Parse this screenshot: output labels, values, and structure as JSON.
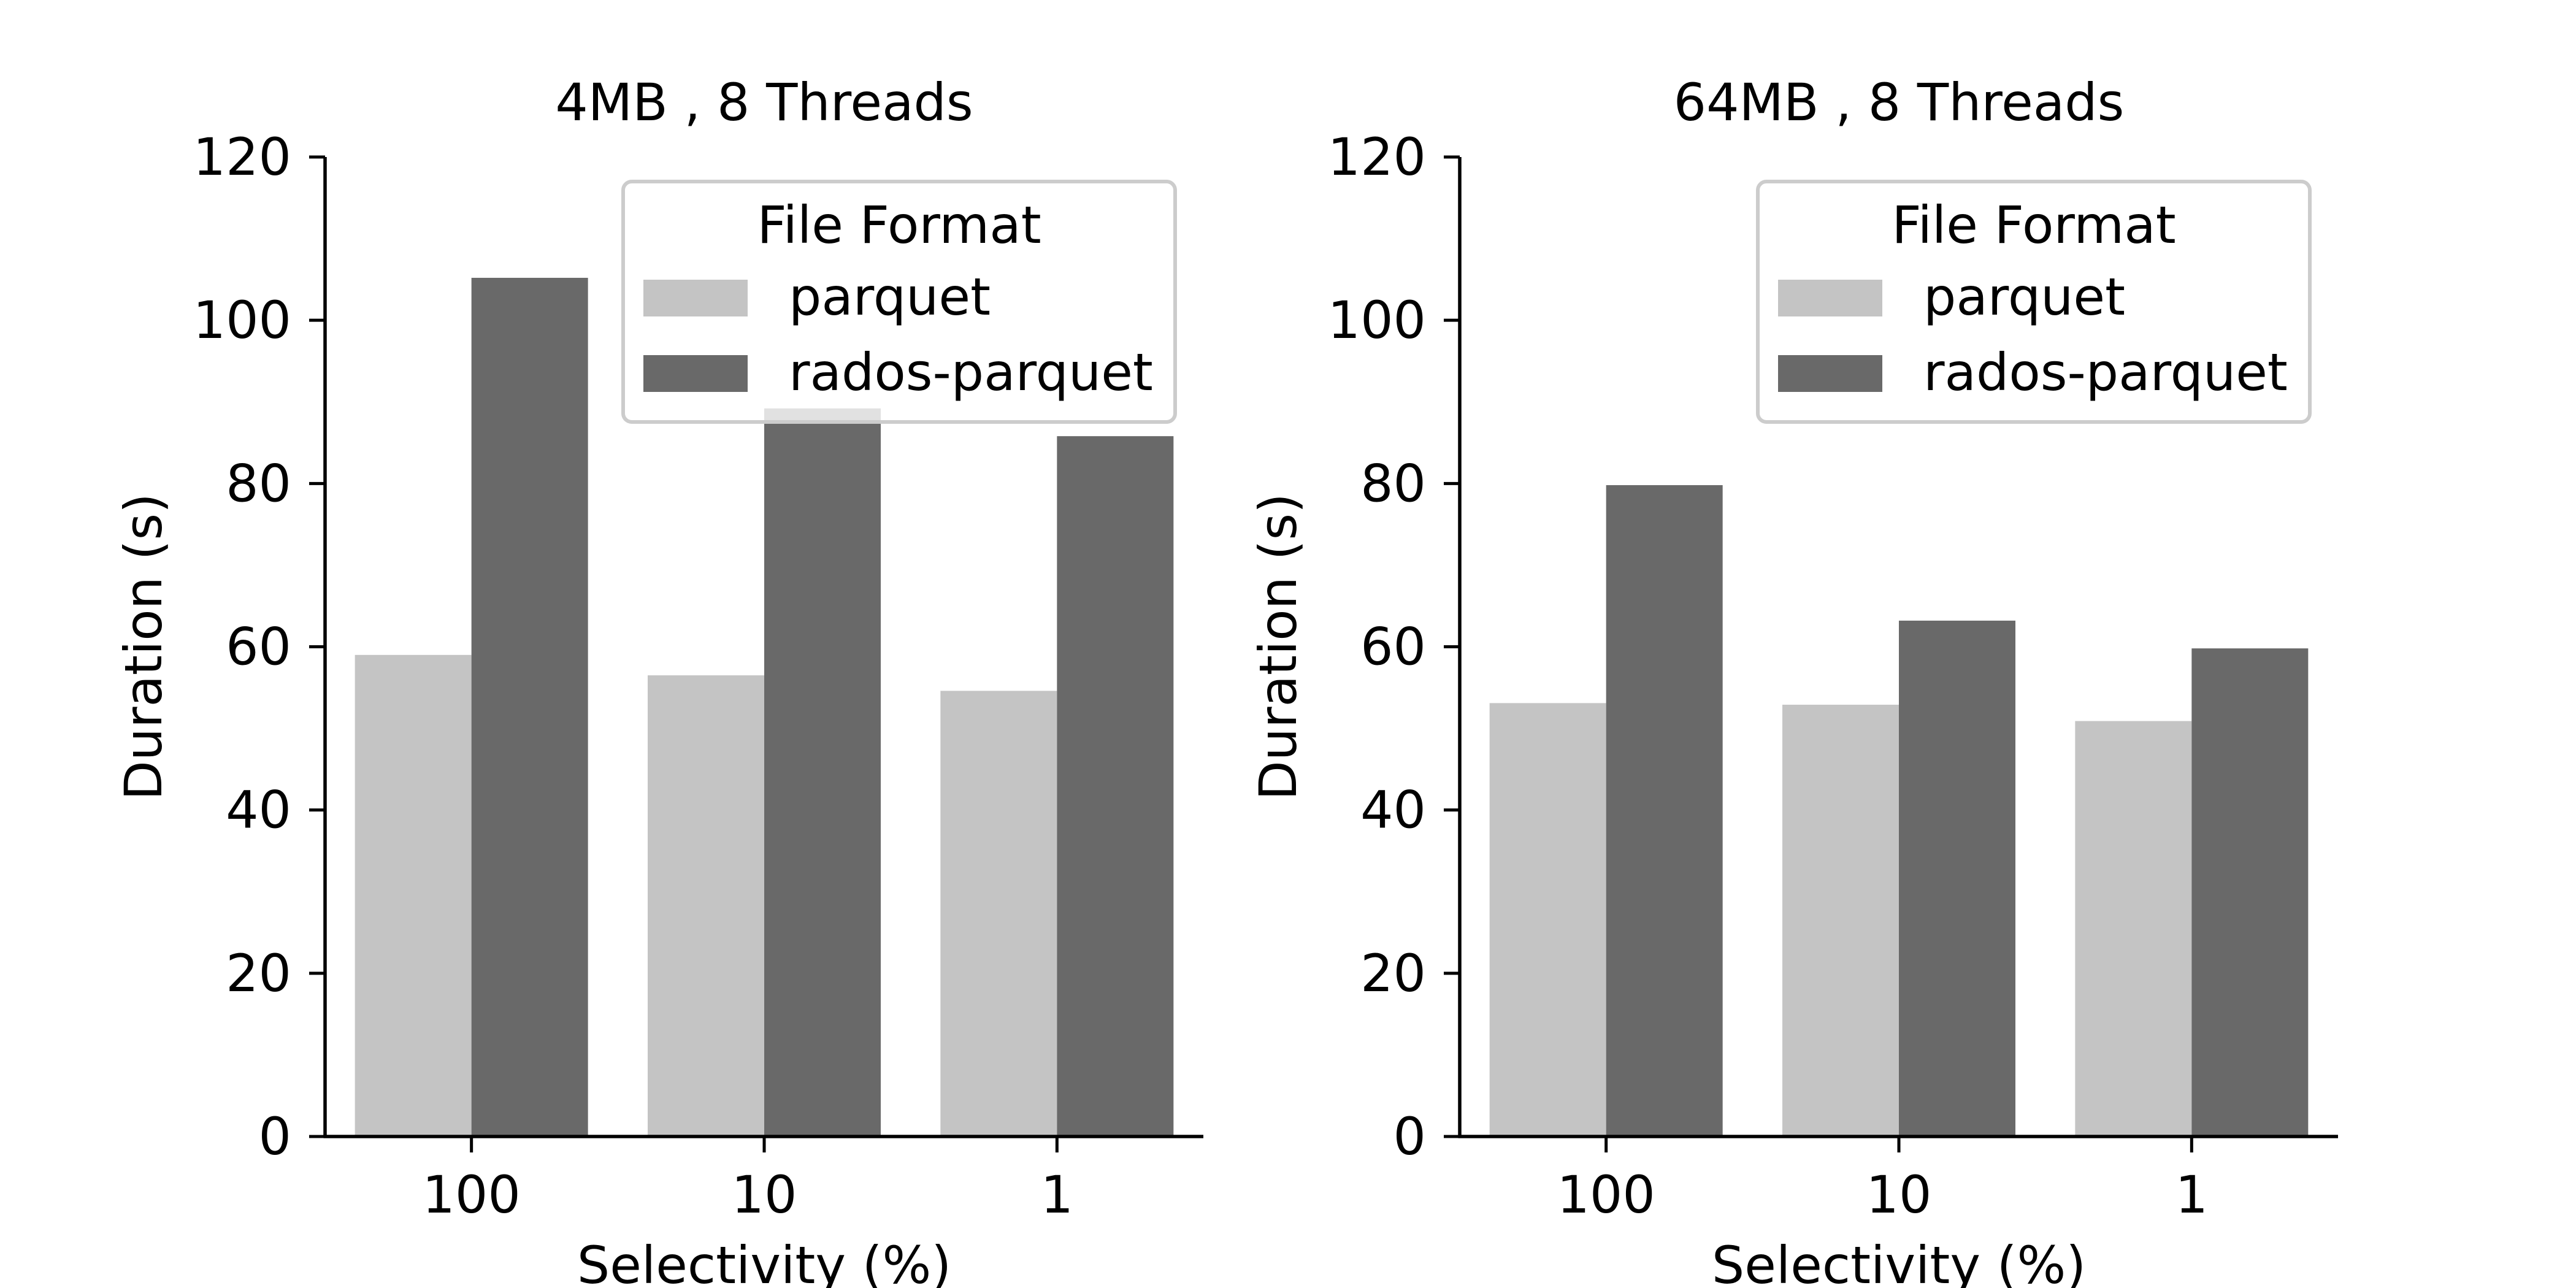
{
  "chart_data": [
    {
      "type": "bar",
      "title": "4MB , 8 Threads",
      "xlabel": "Selectivity (%)",
      "ylabel": "Duration (s)",
      "categories": [
        "100",
        "10",
        "1"
      ],
      "ylim": [
        0,
        120
      ],
      "yticks": [
        0,
        20,
        40,
        60,
        80,
        100,
        120
      ],
      "series": [
        {
          "name": "parquet",
          "color": "#c4c4c4",
          "values": [
            59,
            56.5,
            54.6
          ]
        },
        {
          "name": "rados-parquet",
          "color": "#696969",
          "values": [
            105.2,
            89.2,
            85.8
          ]
        }
      ],
      "legend": {
        "title": "File Format",
        "position": "upper right"
      },
      "grid": false
    },
    {
      "type": "bar",
      "title": "64MB , 8 Threads",
      "xlabel": "Selectivity (%)",
      "ylabel": "Duration (s)",
      "categories": [
        "100",
        "10",
        "1"
      ],
      "ylim": [
        0,
        120
      ],
      "yticks": [
        0,
        20,
        40,
        60,
        80,
        100,
        120
      ],
      "series": [
        {
          "name": "parquet",
          "color": "#c4c4c4",
          "values": [
            53.1,
            52.9,
            50.9
          ]
        },
        {
          "name": "rados-parquet",
          "color": "#696969",
          "values": [
            79.8,
            63.2,
            59.8
          ]
        }
      ],
      "legend": {
        "title": "File Format",
        "position": "upper right"
      },
      "grid": false
    }
  ]
}
